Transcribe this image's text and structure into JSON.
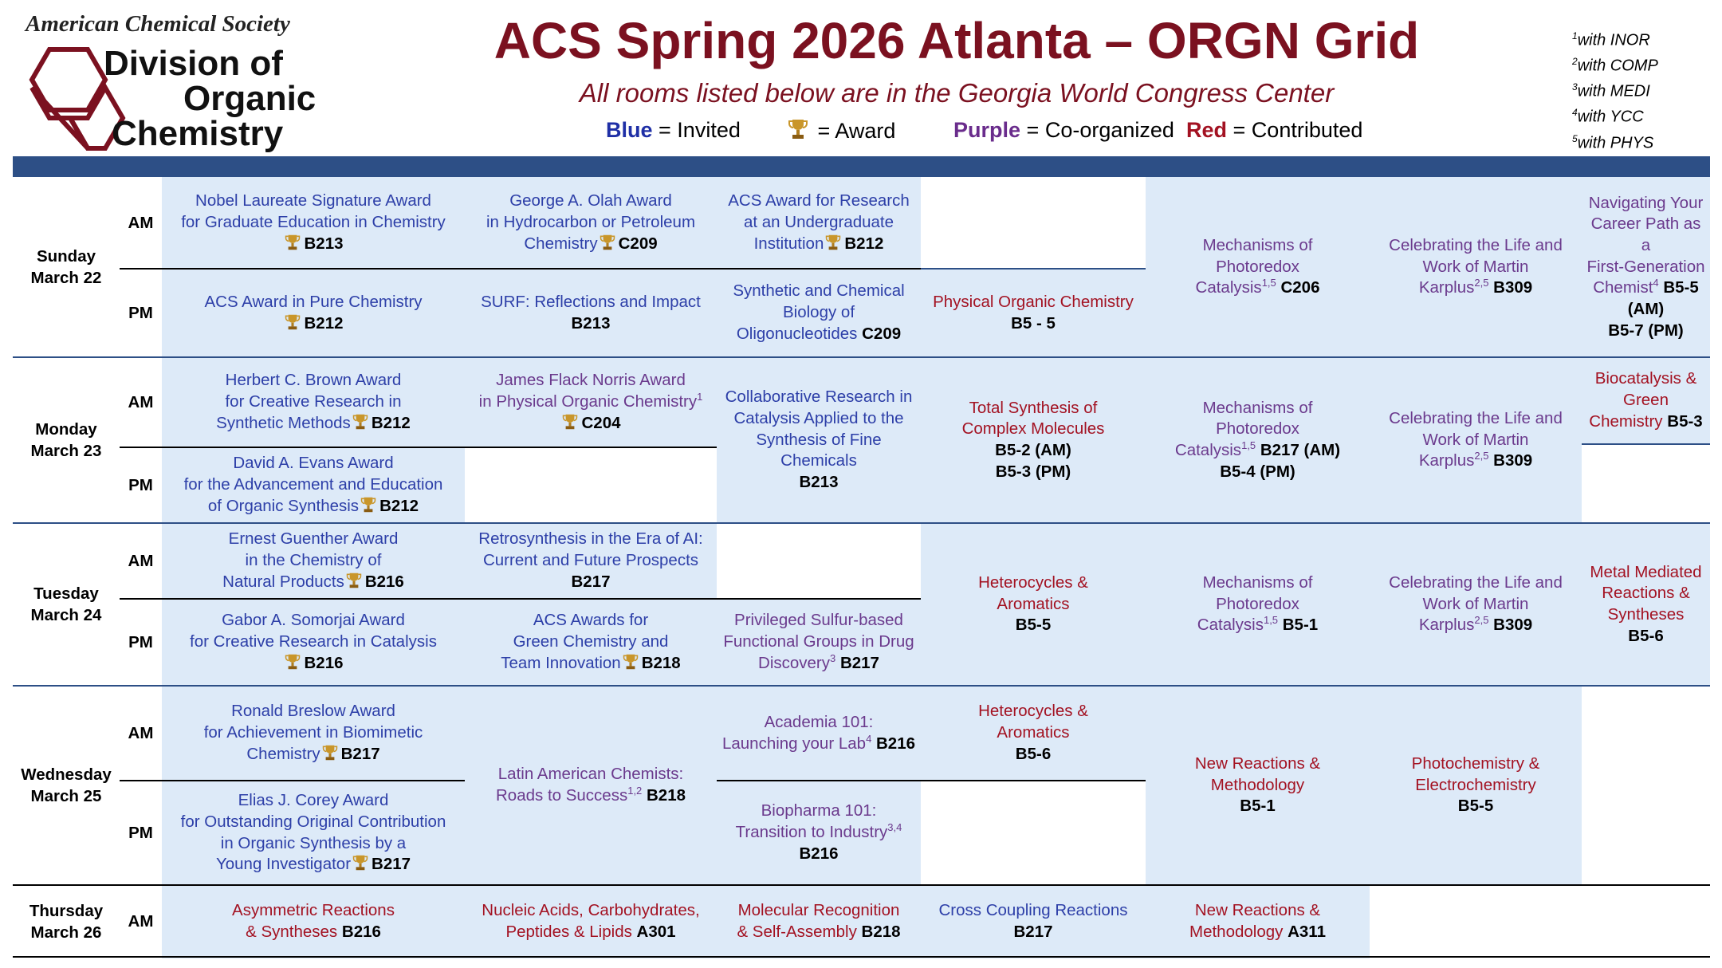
{
  "logo": {
    "society": "American Chemical Society",
    "line1": "Division of",
    "line2": "Organic",
    "line3": "Chemistry",
    "color": "#7b1120"
  },
  "header": {
    "title": "ACS Spring 2026 Atlanta – ORGN Grid",
    "subtitle": "All rooms listed below are in the Georgia World Congress Center"
  },
  "legend": {
    "blue_word": "Blue",
    "blue_rest": "= Invited",
    "award_rest": "= Award",
    "award_icon": "trophy-icon",
    "purple_word": "Purple",
    "purple_rest": "= Co-organized",
    "red_word": "Red",
    "red_rest": "= Contributed"
  },
  "notes": [
    {
      "num": "1",
      "text": "with INOR"
    },
    {
      "num": "2",
      "text": "with COMP"
    },
    {
      "num": "3",
      "text": "with MEDI"
    },
    {
      "num": "4",
      "text": "with YCC"
    },
    {
      "num": "5",
      "text": "with PHYS"
    }
  ],
  "colors": {
    "title": "#7b1120",
    "invited": "#2d3fa8",
    "coorganized": "#6b3a8d",
    "contributed": "#a31222",
    "cell_bg": "#ddeaf8",
    "bar": "#2d4f86"
  },
  "days": [
    {
      "day": "Sunday",
      "date": "March 22"
    },
    {
      "day": "Monday",
      "date": "March 23"
    },
    {
      "day": "Tuesday",
      "date": "March 24"
    },
    {
      "day": "Wednesday",
      "date": "March 25"
    },
    {
      "day": "Thursday",
      "date": "March 26"
    }
  ],
  "slots": {
    "am": "AM",
    "pm": "PM"
  },
  "sessions": {
    "sun_am_1": {
      "lines": [
        "Nobel Laureate Signature Award",
        "for Graduate Education in Chemistry"
      ],
      "room": "B213"
    },
    "sun_am_2": {
      "lines": [
        "George A. Olah Award",
        "in Hydrocarbon or Petroleum"
      ],
      "tail": "Chemistry",
      "room": "C209"
    },
    "sun_am_3": {
      "lines": [
        "ACS Award for Research",
        "at an Undergraduate"
      ],
      "tail": "Institution",
      "room": "B212"
    },
    "sun_pm_1": {
      "lines": [
        "ACS Award in Pure Chemistry"
      ],
      "room": "B212"
    },
    "sun_pm_2": {
      "lines": [
        "SURF: Reflections and Impact"
      ],
      "room": "B213"
    },
    "sun_pm_3": {
      "lines": [
        "Synthetic and Chemical",
        "Biology of"
      ],
      "tail": "Oligonucleotides",
      "room": "C209"
    },
    "sun_pm_4": {
      "lines": [
        "Physical Organic Chemistry"
      ],
      "room": "B5 - 5"
    },
    "sun_5": {
      "lines": [
        "Mechanisms of",
        "Photoredox"
      ],
      "tail": "Catalysis",
      "sup": "1,5",
      "room": "C206"
    },
    "sun_6": {
      "lines": [
        "Celebrating the Life and",
        "Work of Martin"
      ],
      "tail": "Karplus",
      "sup": "2,5",
      "room": "B309"
    },
    "sun_7": {
      "lines": [
        "Navigating Your",
        "Career Path as a",
        "First-Generation"
      ],
      "tail": "Chemist",
      "sup": "4",
      "room": "B5-5 (AM)",
      "room2": "B5-7 (PM)"
    },
    "mon_am_1": {
      "lines": [
        "Herbert C. Brown Award",
        "for Creative Research in"
      ],
      "tail": "Synthetic Methods",
      "room": "B212"
    },
    "mon_am_2": {
      "lines": [
        "James Flack Norris Award"
      ],
      "tail": "in Physical Organic Chemistry",
      "sup": "1",
      "room": "C204"
    },
    "mon_3": {
      "lines": [
        "Collaborative Research in",
        "Catalysis Applied to the",
        "Synthesis of Fine",
        "Chemicals"
      ],
      "room": "B213"
    },
    "mon_4": {
      "lines": [
        "Total Synthesis of",
        "Complex Molecules"
      ],
      "room": "B5-2 (AM)",
      "room2": "B5-3 (PM)"
    },
    "mon_5": {
      "lines": [
        "Mechanisms of",
        "Photoredox"
      ],
      "tail": "Catalysis",
      "sup": "1,5",
      "room": "B217 (AM)",
      "room2": "B5-4 (PM)"
    },
    "mon_6": {
      "lines": [
        "Celebrating the Life and",
        "Work of Martin"
      ],
      "tail": "Karplus",
      "sup": "2,5",
      "room": "B309"
    },
    "mon_am_7": {
      "lines": [
        "Biocatalysis & Green"
      ],
      "tail": "Chemistry",
      "room": "B5-3"
    },
    "mon_pm_1": {
      "lines": [
        "David A. Evans Award",
        "for the Advancement and Education"
      ],
      "tail": "of Organic Synthesis",
      "room": "B212"
    },
    "tue_am_1": {
      "lines": [
        "Ernest Guenther Award",
        "in the Chemistry of"
      ],
      "tail": "Natural Products",
      "room": "B216"
    },
    "tue_am_2": {
      "lines": [
        "Retrosynthesis in the Era of AI:",
        "Current and Future Prospects"
      ],
      "room": "B217"
    },
    "tue_pm_1": {
      "lines": [
        "Gabor A. Somorjai Award",
        "for Creative Research in Catalysis"
      ],
      "room": "B216"
    },
    "tue_pm_2": {
      "lines": [
        "ACS Awards for",
        "Green Chemistry and"
      ],
      "tail": "Team Innovation",
      "room": "B218"
    },
    "tue_pm_3": {
      "lines": [
        "Privileged Sulfur-based",
        "Functional Groups in Drug"
      ],
      "tail": "Discovery",
      "sup": "3",
      "room": "B217"
    },
    "tue_4": {
      "lines": [
        "Heterocycles &",
        "Aromatics"
      ],
      "room": "B5-5"
    },
    "tue_5": {
      "lines": [
        "Mechanisms of",
        "Photoredox"
      ],
      "tail": "Catalysis",
      "sup": "1,5",
      "room": "B5-1"
    },
    "tue_6": {
      "lines": [
        "Celebrating the Life and",
        "Work of Martin"
      ],
      "tail": "Karplus",
      "sup": "2,5",
      "room": "B309"
    },
    "tue_7": {
      "lines": [
        "Metal Mediated",
        "Reactions &",
        "Syntheses"
      ],
      "room": "B5-6"
    },
    "wed_am_1": {
      "lines": [
        "Ronald Breslow Award",
        "for Achievement in Biomimetic"
      ],
      "tail": "Chemistry",
      "room": "B217"
    },
    "wed_2": {
      "lines": [
        "Latin American Chemists:"
      ],
      "tail": "Roads to Success",
      "sup": "1,2",
      "room": "B218"
    },
    "wed_am_3": {
      "lines": [
        "Academia 101:"
      ],
      "tail": "Launching your Lab",
      "sup": "4",
      "room": "B216"
    },
    "wed_am_4": {
      "lines": [
        "Heterocycles &",
        "Aromatics"
      ],
      "room": "B5-6"
    },
    "wed_5": {
      "lines": [
        "New Reactions &",
        "Methodology"
      ],
      "room": "B5-1"
    },
    "wed_6": {
      "lines": [
        "Photochemistry &",
        "Electrochemistry"
      ],
      "room": "B5-5"
    },
    "wed_pm_1": {
      "lines": [
        "Elias J. Corey Award",
        "for Outstanding Original Contribution",
        "in Organic Synthesis by a"
      ],
      "tail": "Young Investigator",
      "room": "B217"
    },
    "wed_pm_3": {
      "lines": [
        "Biopharma 101:"
      ],
      "tail": "Transition to Industry",
      "sup": "3,4",
      "room": "B216"
    },
    "thu_1": {
      "lines": [
        "Asymmetric Reactions"
      ],
      "tail": "& Syntheses",
      "room": "B216"
    },
    "thu_2": {
      "lines": [
        "Nucleic Acids, Carbohydrates,"
      ],
      "tail": "Peptides & Lipids",
      "room": "A301"
    },
    "thu_3": {
      "lines": [
        "Molecular Recognition"
      ],
      "tail": "& Self-Assembly",
      "room": "B218"
    },
    "thu_4": {
      "lines": [
        "Cross Coupling Reactions"
      ],
      "room": "B217"
    },
    "thu_5": {
      "lines": [
        "New Reactions &"
      ],
      "tail": "Methodology",
      "room": "A311"
    }
  }
}
